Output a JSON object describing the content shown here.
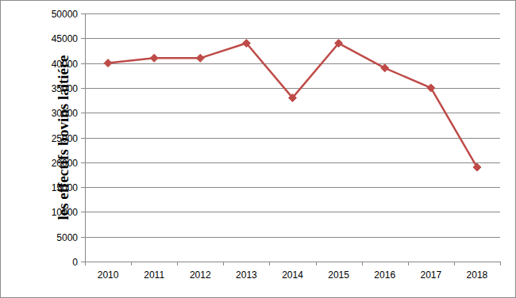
{
  "chart_data": {
    "type": "line",
    "y_label": "les effectifs bovins laitiére",
    "categories": [
      "2010",
      "2011",
      "2012",
      "2013",
      "2014",
      "2015",
      "2016",
      "2017",
      "2018"
    ],
    "values": [
      40000,
      41000,
      41000,
      44000,
      33000,
      44000,
      39000,
      35000,
      19000
    ],
    "color": "#be4b48",
    "marker": "diamond",
    "ylim": [
      0,
      50000
    ],
    "yticks": [
      0,
      5000,
      10000,
      15000,
      20000,
      25000,
      30000,
      35000,
      40000,
      45000,
      50000
    ],
    "grid": true
  }
}
